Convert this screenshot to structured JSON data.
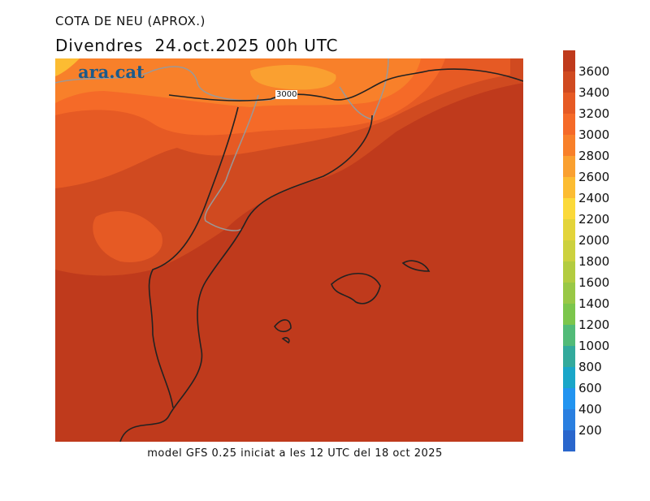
{
  "title": "COTA DE NEU (APROX.)",
  "subtitle": "Divendres  24.oct.2025 00h UTC",
  "logo": "ara.cat",
  "footer": "model GFS 0.25 iniciat a les 12 UTC del 18 oct 2025",
  "contour_label": "3000",
  "colorbar": {
    "ticks": [
      "3600",
      "3400",
      "3200",
      "3000",
      "2800",
      "2600",
      "2400",
      "2200",
      "2000",
      "1800",
      "1600",
      "1400",
      "1200",
      "1000",
      "800",
      "600",
      "400",
      "200"
    ],
    "colors": [
      "#bf3a1c",
      "#d04a20",
      "#e65a24",
      "#f56a28",
      "#f8802a",
      "#faa030",
      "#fcbc32",
      "#fbd93a",
      "#e3d43a",
      "#ccd13e",
      "#b3cc40",
      "#99c846",
      "#7cc64c",
      "#52bb78",
      "#33aa9c",
      "#1aa6c8",
      "#2294f0",
      "#2a7fe0",
      "#2a66cc"
    ]
  }
}
